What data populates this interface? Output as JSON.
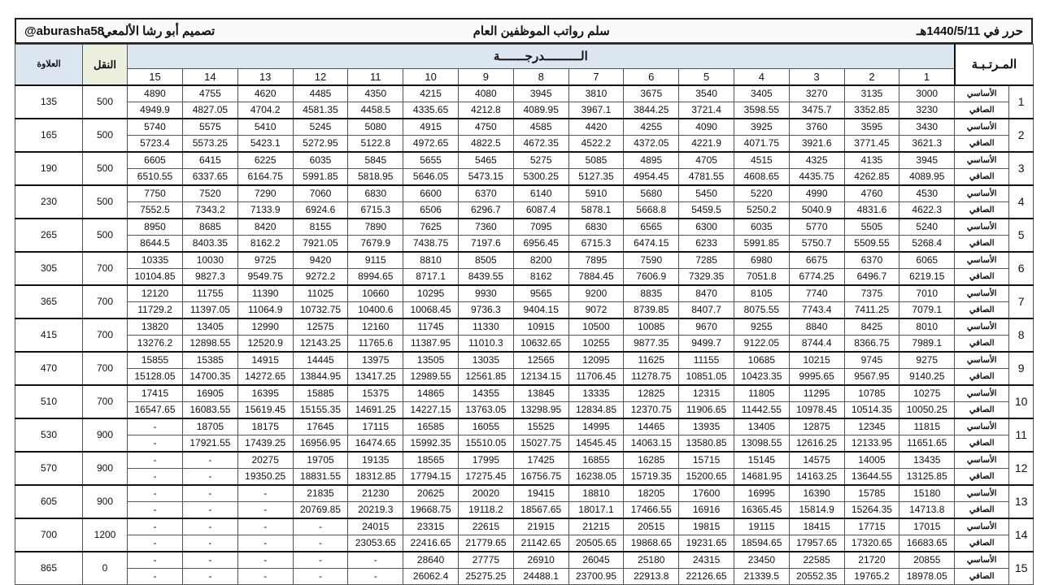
{
  "header": {
    "date": "حرر في 1440/5/11هـ",
    "title": "سلم رواتب الموظفين العام",
    "designer": "تصميم أبو رشا الألمعي",
    "handle": "@aburasha58"
  },
  "columns": {
    "rank": "المـرتـبـة",
    "grade": "الــــــــــدرجـــــــة",
    "transport": "النقل",
    "allowance": "العلاوة",
    "grades": [
      "1",
      "2",
      "3",
      "4",
      "5",
      "6",
      "7",
      "8",
      "9",
      "10",
      "11",
      "12",
      "13",
      "14",
      "15"
    ],
    "basic_label": "الأساسي",
    "net_label": "الصافي"
  },
  "rows": [
    {
      "rank": "1",
      "basic": [
        "3000",
        "3135",
        "3270",
        "3405",
        "3540",
        "3675",
        "3810",
        "3945",
        "4080",
        "4215",
        "4350",
        "4485",
        "4620",
        "4755",
        "4890"
      ],
      "net": [
        "3230",
        "3352.85",
        "3475.7",
        "3598.55",
        "3721.4",
        "3844.25",
        "3967.1",
        "4089.95",
        "4212.8",
        "4335.65",
        "4458.5",
        "4581.35",
        "4704.2",
        "4827.05",
        "4949.9"
      ],
      "transport": "500",
      "allowance": "135"
    },
    {
      "rank": "2",
      "basic": [
        "3430",
        "3595",
        "3760",
        "3925",
        "4090",
        "4255",
        "4420",
        "4585",
        "4750",
        "4915",
        "5080",
        "5245",
        "5410",
        "5575",
        "5740"
      ],
      "net": [
        "3621.3",
        "3771.45",
        "3921.6",
        "4071.75",
        "4221.9",
        "4372.05",
        "4522.2",
        "4672.35",
        "4822.5",
        "4972.65",
        "5122.8",
        "5272.95",
        "5423.1",
        "5573.25",
        "5723.4"
      ],
      "transport": "500",
      "allowance": "165"
    },
    {
      "rank": "3",
      "basic": [
        "3945",
        "4135",
        "4325",
        "4515",
        "4705",
        "4895",
        "5085",
        "5275",
        "5465",
        "5655",
        "5845",
        "6035",
        "6225",
        "6415",
        "6605"
      ],
      "net": [
        "4089.95",
        "4262.85",
        "4435.75",
        "4608.65",
        "4781.55",
        "4954.45",
        "5127.35",
        "5300.25",
        "5473.15",
        "5646.05",
        "5818.95",
        "5991.85",
        "6164.75",
        "6337.65",
        "6510.55"
      ],
      "transport": "500",
      "allowance": "190"
    },
    {
      "rank": "4",
      "basic": [
        "4530",
        "4760",
        "4990",
        "5220",
        "5450",
        "5680",
        "5910",
        "6140",
        "6370",
        "6600",
        "6830",
        "7060",
        "7290",
        "7520",
        "7750"
      ],
      "net": [
        "4622.3",
        "4831.6",
        "5040.9",
        "5250.2",
        "5459.5",
        "5668.8",
        "5878.1",
        "6087.4",
        "6296.7",
        "6506",
        "6715.3",
        "6924.6",
        "7133.9",
        "7343.2",
        "7552.5"
      ],
      "transport": "500",
      "allowance": "230"
    },
    {
      "rank": "5",
      "basic": [
        "5240",
        "5505",
        "5770",
        "6035",
        "6300",
        "6565",
        "6830",
        "7095",
        "7360",
        "7625",
        "7890",
        "8155",
        "8420",
        "8685",
        "8950"
      ],
      "net": [
        "5268.4",
        "5509.55",
        "5750.7",
        "5991.85",
        "6233",
        "6474.15",
        "6715.3",
        "6956.45",
        "7197.6",
        "7438.75",
        "7679.9",
        "7921.05",
        "8162.2",
        "8403.35",
        "8644.5"
      ],
      "transport": "500",
      "allowance": "265"
    },
    {
      "rank": "6",
      "basic": [
        "6065",
        "6370",
        "6675",
        "6980",
        "7285",
        "7590",
        "7895",
        "8200",
        "8505",
        "8810",
        "9115",
        "9420",
        "9725",
        "10030",
        "10335"
      ],
      "net": [
        "6219.15",
        "6496.7",
        "6774.25",
        "7051.8",
        "7329.35",
        "7606.9",
        "7884.45",
        "8162",
        "8439.55",
        "8717.1",
        "8994.65",
        "9272.2",
        "9549.75",
        "9827.3",
        "10104.85"
      ],
      "transport": "700",
      "allowance": "305"
    },
    {
      "rank": "7",
      "basic": [
        "7010",
        "7375",
        "7740",
        "8105",
        "8470",
        "8835",
        "9200",
        "9565",
        "9930",
        "10295",
        "10660",
        "11025",
        "11390",
        "11755",
        "12120"
      ],
      "net": [
        "7079.1",
        "7411.25",
        "7743.4",
        "8075.55",
        "8407.7",
        "8739.85",
        "9072",
        "9404.15",
        "9736.3",
        "10068.45",
        "10400.6",
        "10732.75",
        "11064.9",
        "11397.05",
        "11729.2"
      ],
      "transport": "700",
      "allowance": "365"
    },
    {
      "rank": "8",
      "basic": [
        "8010",
        "8425",
        "8840",
        "9255",
        "9670",
        "10085",
        "10500",
        "10915",
        "11330",
        "11745",
        "12160",
        "12575",
        "12990",
        "13405",
        "13820"
      ],
      "net": [
        "7989.1",
        "8366.75",
        "8744.4",
        "9122.05",
        "9499.7",
        "9877.35",
        "10255",
        "10632.65",
        "11010.3",
        "11387.95",
        "11765.6",
        "12143.25",
        "12520.9",
        "12898.55",
        "13276.2"
      ],
      "transport": "700",
      "allowance": "415"
    },
    {
      "rank": "9",
      "basic": [
        "9275",
        "9745",
        "10215",
        "10685",
        "11155",
        "11625",
        "12095",
        "12565",
        "13035",
        "13505",
        "13975",
        "14445",
        "14915",
        "15385",
        "15855"
      ],
      "net": [
        "9140.25",
        "9567.95",
        "9995.65",
        "10423.35",
        "10851.05",
        "11278.75",
        "11706.45",
        "12134.15",
        "12561.85",
        "12989.55",
        "13417.25",
        "13844.95",
        "14272.65",
        "14700.35",
        "15128.05"
      ],
      "transport": "700",
      "allowance": "470"
    },
    {
      "rank": "10",
      "basic": [
        "10275",
        "10785",
        "11295",
        "11805",
        "12315",
        "12825",
        "13335",
        "13845",
        "14355",
        "14865",
        "15375",
        "15885",
        "16395",
        "16905",
        "17415"
      ],
      "net": [
        "10050.25",
        "10514.35",
        "10978.45",
        "11442.55",
        "11906.65",
        "12370.75",
        "12834.85",
        "13298.95",
        "13763.05",
        "14227.15",
        "14691.25",
        "15155.35",
        "15619.45",
        "16083.55",
        "16547.65"
      ],
      "transport": "700",
      "allowance": "510"
    },
    {
      "rank": "11",
      "basic": [
        "11815",
        "12345",
        "12875",
        "13405",
        "13935",
        "14465",
        "14995",
        "15525",
        "16055",
        "16585",
        "17115",
        "17645",
        "18175",
        "18705",
        "-"
      ],
      "net": [
        "11651.65",
        "12133.95",
        "12616.25",
        "13098.55",
        "13580.85",
        "14063.15",
        "14545.45",
        "15027.75",
        "15510.05",
        "15992.35",
        "16474.65",
        "16956.95",
        "17439.25",
        "17921.55",
        "-"
      ],
      "transport": "900",
      "allowance": "530"
    },
    {
      "rank": "12",
      "basic": [
        "13435",
        "14005",
        "14575",
        "15145",
        "15715",
        "16285",
        "16855",
        "17425",
        "17995",
        "18565",
        "19135",
        "19705",
        "20275",
        "-",
        "-"
      ],
      "net": [
        "13125.85",
        "13644.55",
        "14163.25",
        "14681.95",
        "15200.65",
        "15719.35",
        "16238.05",
        "16756.75",
        "17275.45",
        "17794.15",
        "18312.85",
        "18831.55",
        "19350.25",
        "-",
        "-"
      ],
      "transport": "900",
      "allowance": "570"
    },
    {
      "rank": "13",
      "basic": [
        "15180",
        "15785",
        "16390",
        "16995",
        "17600",
        "18205",
        "18810",
        "19415",
        "20020",
        "20625",
        "21230",
        "21835",
        "-",
        "-",
        "-"
      ],
      "net": [
        "14713.8",
        "15264.35",
        "15814.9",
        "16365.45",
        "16916",
        "17466.55",
        "18017.1",
        "18567.65",
        "19118.2",
        "19668.75",
        "20219.3",
        "20769.85",
        "-",
        "-",
        "-"
      ],
      "transport": "900",
      "allowance": "605"
    },
    {
      "rank": "14",
      "basic": [
        "17015",
        "17715",
        "18415",
        "19115",
        "19815",
        "20515",
        "21215",
        "21915",
        "22615",
        "23315",
        "24015",
        "-",
        "-",
        "-",
        "-"
      ],
      "net": [
        "16683.65",
        "17320.65",
        "17957.65",
        "18594.65",
        "19231.65",
        "19868.65",
        "20505.65",
        "21142.65",
        "21779.65",
        "22416.65",
        "23053.65",
        "-",
        "-",
        "-",
        "-"
      ],
      "transport": "1200",
      "allowance": "700"
    },
    {
      "rank": "15",
      "basic": [
        "20855",
        "21720",
        "22585",
        "23450",
        "24315",
        "25180",
        "26045",
        "26910",
        "27775",
        "28640",
        "-",
        "-",
        "-",
        "-",
        "-"
      ],
      "net": [
        "18978.05",
        "19765.2",
        "20552.35",
        "21339.5",
        "22126.65",
        "22913.8",
        "23700.95",
        "24488.1",
        "25275.25",
        "26062.4",
        "-",
        "-",
        "-",
        "-",
        "-"
      ],
      "transport": "0",
      "allowance": "865"
    }
  ]
}
